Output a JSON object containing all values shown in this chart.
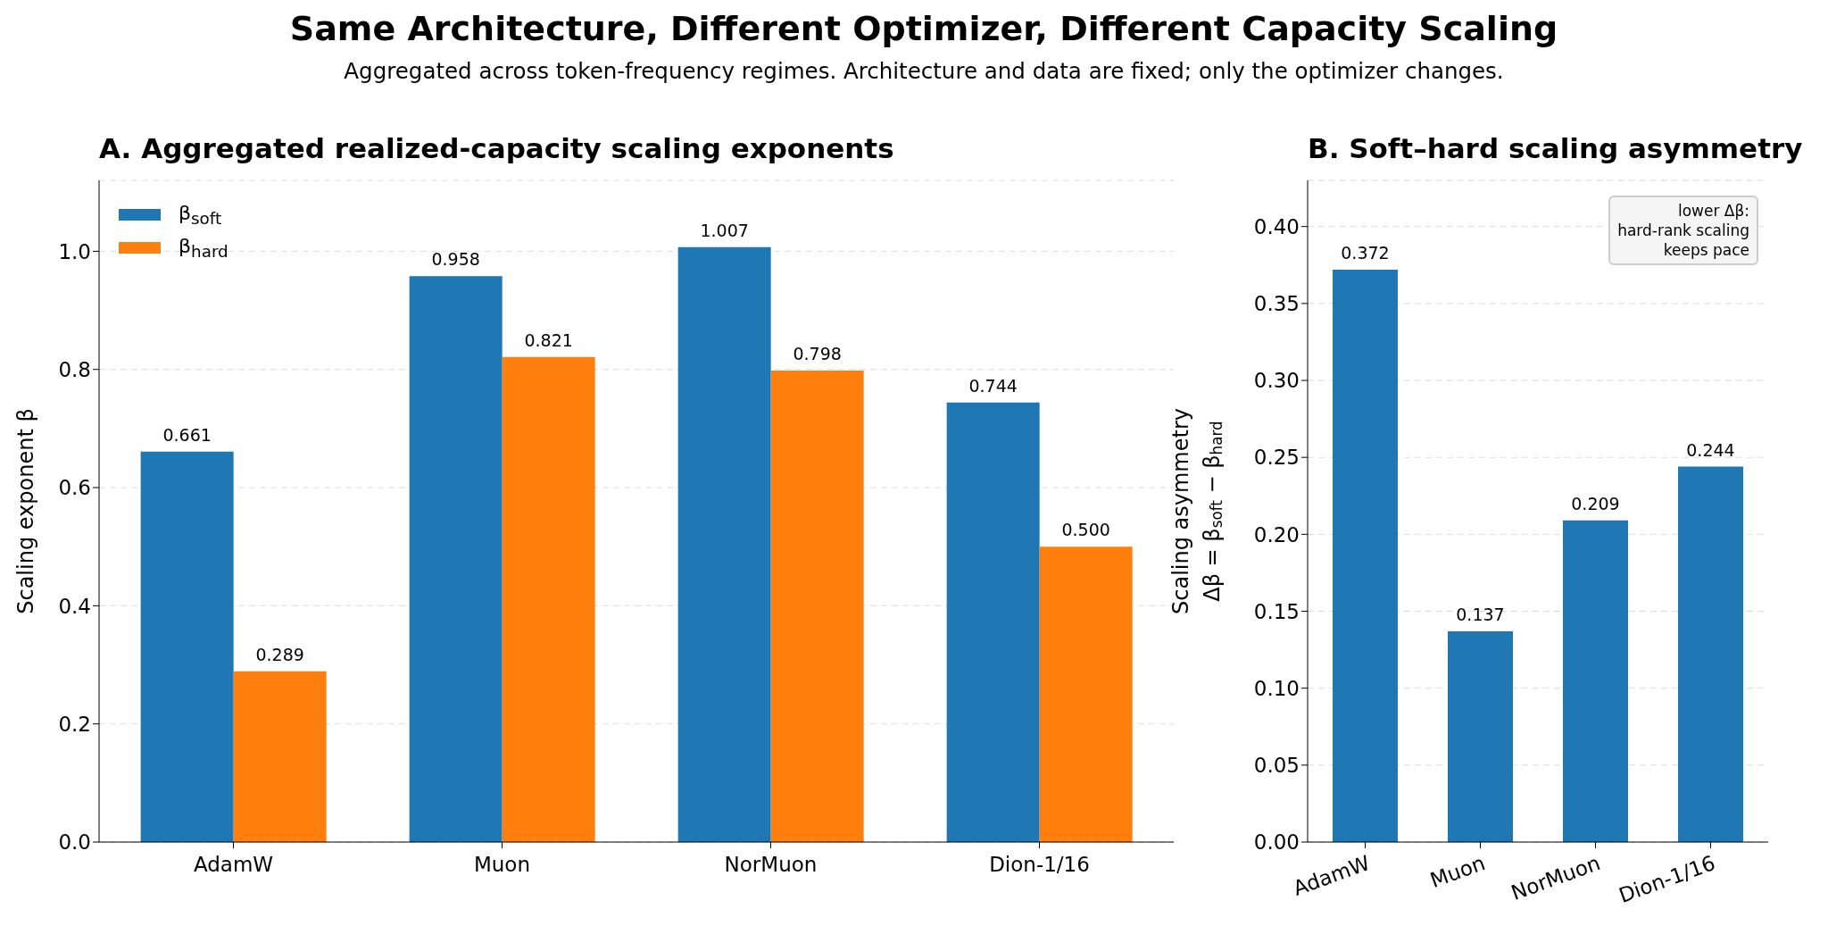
{
  "chart_data": [
    {
      "type": "other",
      "title": "Same Architecture, Different Optimizer, Different Capacity Scaling",
      "subtitle": "Aggregated across token-frequency regimes. Architecture and data are fixed; only the optimizer changes."
    },
    {
      "type": "bar",
      "title": "A. Aggregated realized-capacity scaling exponents",
      "categories": [
        "AdamW",
        "Muon",
        "NorMuon",
        "Dion-1/16"
      ],
      "series": [
        {
          "name": "β$_{soft}$",
          "color": "#1f77b4",
          "values": [
            0.661,
            0.958,
            1.007,
            0.744
          ],
          "value_labels": [
            "0.661",
            "0.958",
            "1.007",
            "0.744"
          ]
        },
        {
          "name": "β$_{hard}$",
          "color": "#ff7f0e",
          "values": [
            0.289,
            0.821,
            0.798,
            0.5
          ],
          "value_labels": [
            "0.289",
            "0.821",
            "0.798",
            "0.500"
          ]
        }
      ],
      "ylabel": "Scaling exponent β",
      "ylim": [
        0,
        1.12
      ],
      "yticks": [
        {
          "value": 0,
          "label": "0.0"
        },
        0.2,
        0.4,
        0.6,
        0.8,
        {
          "value": 1,
          "label": "1.0"
        }
      ],
      "grid": "y",
      "legend": "top left"
    },
    {
      "type": "bar",
      "title": "B. Soft–hard scaling asymmetry",
      "categories": [
        "AdamW",
        "Muon",
        "NorMuon",
        "Dion-1/16"
      ],
      "values": [
        0.372,
        0.137,
        0.209,
        0.244
      ],
      "color": "#1f77b4",
      "ylabel": "Scaling asymmetry\nΔβ = β$_{soft}$ − β$_{hard}$",
      "ylim": [
        0,
        0.43
      ],
      "yticks": [
        {
          "value": 0,
          "label": "0.00"
        },
        0.05,
        {
          "value": 0.1,
          "label": "0.10"
        },
        0.15,
        {
          "value": 0.2,
          "label": "0.20"
        },
        0.25,
        {
          "value": 0.3,
          "label": "0.30"
        },
        0.35,
        {
          "value": 0.4,
          "label": "0.40"
        }
      ],
      "grid": "y",
      "data_labels": true,
      "annotations": [
        "lower Δβ:\nhard-rank scaling\nkeeps pace"
      ]
    }
  ]
}
